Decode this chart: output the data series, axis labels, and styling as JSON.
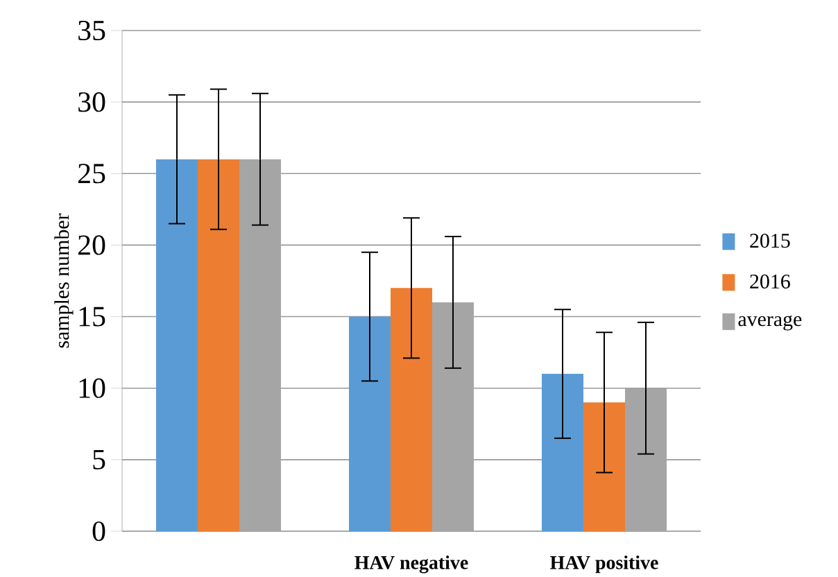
{
  "chart_data": {
    "type": "bar",
    "ylabel": "samples number",
    "categories": [
      null,
      "HAV negative",
      "HAV positive"
    ],
    "series": [
      {
        "name": "2015",
        "color": "#5b9bd5",
        "values": [
          26,
          15,
          11
        ],
        "errors": [
          4.5,
          4.5,
          4.5
        ]
      },
      {
        "name": "2016",
        "color": "#ed7d31",
        "values": [
          26,
          17,
          9
        ],
        "errors": [
          4.9,
          4.9,
          4.9
        ]
      },
      {
        "name": "average",
        "color": "#a5a5a5",
        "values": [
          26,
          16,
          10
        ],
        "errors": [
          4.6,
          4.6,
          4.6
        ]
      }
    ],
    "ylim": [
      0,
      35
    ],
    "yticks": [
      0,
      5,
      10,
      15,
      20,
      25,
      30,
      35
    ],
    "grid": "y",
    "legend": "right"
  }
}
